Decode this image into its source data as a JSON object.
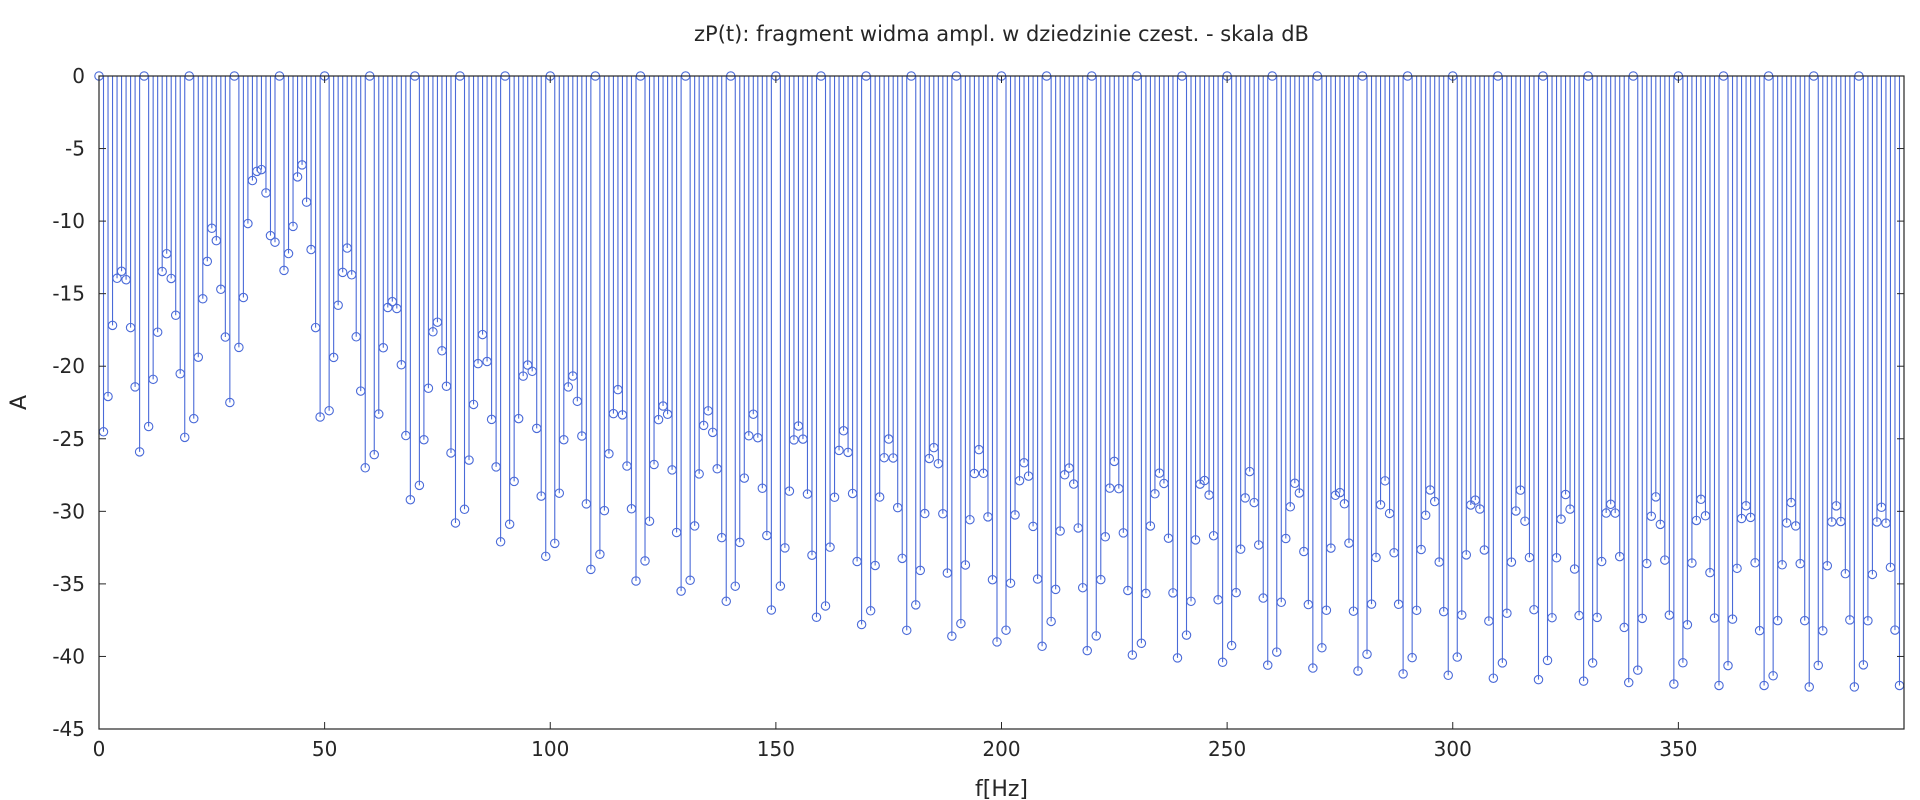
{
  "chart_data": {
    "type": "stem",
    "title": "zP(t): fragment widma ampl. w dziedzinie czest. - skala dB",
    "xlabel": "f[Hz]",
    "ylabel": "A",
    "xlim": [
      0,
      400
    ],
    "ylim": [
      -45,
      0
    ],
    "xticks": [
      0,
      50,
      100,
      150,
      200,
      250,
      300,
      350
    ],
    "yticks": [
      0,
      -5,
      -10,
      -15,
      -20,
      -25,
      -30,
      -35,
      -40,
      -45
    ],
    "x_step": 1,
    "grid": false,
    "series": [
      {
        "color": "#4a6ad8",
        "marker": "circle",
        "peaks": {
          "x": [
            0,
            10,
            20,
            30,
            40,
            50,
            60,
            70,
            80,
            90,
            100,
            110,
            120,
            130,
            140,
            150,
            160,
            170,
            180,
            190,
            200,
            210,
            220,
            230,
            240,
            250,
            260,
            270,
            280,
            290,
            300,
            310,
            320,
            330,
            340,
            350,
            360,
            370,
            380,
            390
          ],
          "y": [
            0,
            0,
            0,
            0,
            0,
            0,
            0,
            0,
            0,
            0,
            0,
            0,
            0,
            0,
            0,
            0,
            0,
            0,
            0,
            0,
            0,
            0,
            0,
            0,
            0,
            0,
            0,
            0,
            0,
            0,
            0,
            0,
            0,
            0,
            0,
            0,
            0,
            0,
            0,
            0
          ]
        },
        "sideband_envelope": {
          "x": [
            5,
            15,
            25,
            35,
            45,
            55,
            65,
            75,
            85,
            95,
            105,
            115,
            125,
            135,
            145,
            155,
            165,
            175,
            185,
            195,
            205,
            215,
            225,
            235,
            245,
            255,
            265,
            275,
            285,
            295,
            305,
            315,
            325,
            335,
            345,
            355,
            365,
            375,
            385,
            395
          ],
          "y": [
            -13,
            -12.5,
            -10.8,
            -6,
            -6.3,
            -12.3,
            -15,
            -17,
            -18.3,
            -19.5,
            -20.6,
            -22,
            -22.5,
            -23,
            -23.5,
            -24,
            -24.5,
            -25,
            -25.5,
            -26,
            -26.5,
            -26.8,
            -27,
            -27.2,
            -27.5,
            -27.8,
            -28,
            -28.2,
            -28.4,
            -28.6,
            -28.7,
            -28.9,
            -29,
            -29.1,
            -29.2,
            -29.3,
            -29.4,
            -29.5,
            -29.6,
            -29.7
          ]
        },
        "notch_minima": {
          "x": [
            0,
            9,
            19,
            29,
            38,
            49,
            59,
            69,
            79,
            89,
            99,
            109,
            119,
            129,
            139,
            149,
            159,
            169,
            179,
            189,
            199,
            209,
            219,
            229,
            239,
            249,
            259,
            269,
            279,
            289,
            299,
            309,
            319,
            329,
            339,
            349,
            359,
            369,
            379,
            389,
            399
          ],
          "y": [
            -26,
            -25.9,
            -24.9,
            -22.5,
            -11,
            -23.5,
            -27,
            -29.2,
            -30.8,
            -32.1,
            -33.1,
            -34,
            -34.8,
            -35.5,
            -36.2,
            -36.8,
            -37.3,
            -37.8,
            -38.2,
            -38.6,
            -39,
            -39.3,
            -39.6,
            -39.9,
            -40.1,
            -40.4,
            -40.6,
            -40.8,
            -41,
            -41.2,
            -41.3,
            -41.5,
            -41.6,
            -41.7,
            -41.8,
            -41.9,
            -42,
            -42,
            -42.1,
            -42.1,
            -42
          ]
        }
      }
    ]
  }
}
